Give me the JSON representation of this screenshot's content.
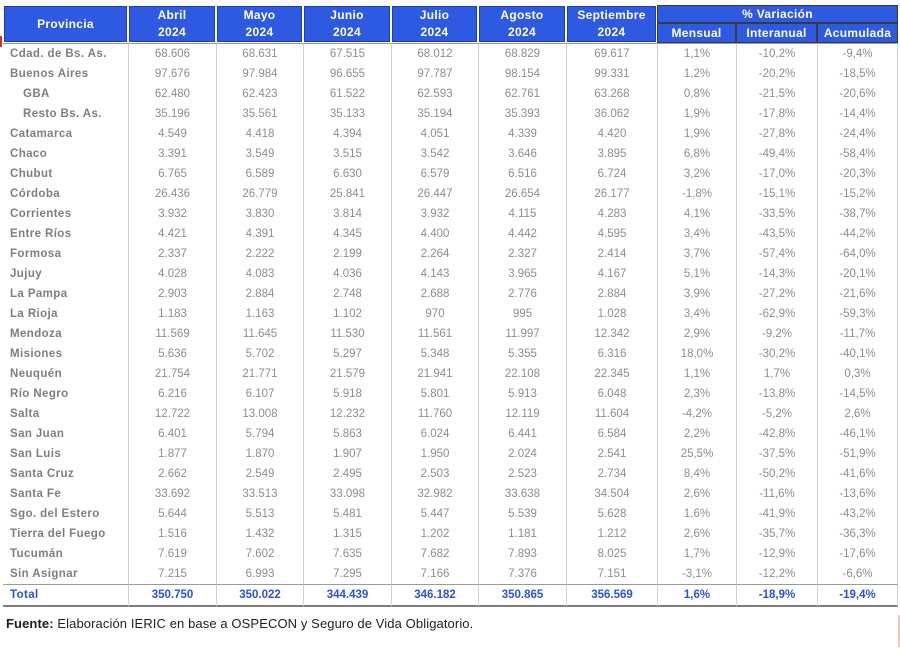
{
  "table": {
    "header": {
      "province_label": "Provincia",
      "months": [
        {
          "name": "Abril",
          "year": "2024"
        },
        {
          "name": "Mayo",
          "year": "2024"
        },
        {
          "name": "Junio",
          "year": "2024"
        },
        {
          "name": "Julio",
          "year": "2024"
        },
        {
          "name": "Agosto",
          "year": "2024"
        },
        {
          "name": "Septiembre",
          "year": "2024"
        }
      ],
      "variation_group": "% Variación",
      "variation_cols": [
        "Mensual",
        "Interanual",
        "Acumulada"
      ]
    },
    "rows": [
      {
        "province": "Cdad. de Bs. As.",
        "indent": false,
        "values": [
          "68.606",
          "68.631",
          "67.515",
          "68.012",
          "68.829",
          "69.617"
        ],
        "variations": [
          "1,1%",
          "-10,2%",
          "-9,4%"
        ]
      },
      {
        "province": "Buenos Aires",
        "indent": false,
        "values": [
          "97.676",
          "97.984",
          "96.655",
          "97.787",
          "98.154",
          "99.331"
        ],
        "variations": [
          "1,2%",
          "-20,2%",
          "-18,5%"
        ]
      },
      {
        "province": "GBA",
        "indent": true,
        "values": [
          "62.480",
          "62.423",
          "61.522",
          "62.593",
          "62.761",
          "63.268"
        ],
        "variations": [
          "0,8%",
          "-21,5%",
          "-20,6%"
        ]
      },
      {
        "province": "Resto Bs. As.",
        "indent": true,
        "values": [
          "35.196",
          "35.561",
          "35.133",
          "35.194",
          "35.393",
          "36.062"
        ],
        "variations": [
          "1,9%",
          "-17,8%",
          "-14,4%"
        ]
      },
      {
        "province": "Catamarca",
        "indent": false,
        "values": [
          "4.549",
          "4.418",
          "4.394",
          "4.051",
          "4.339",
          "4.420"
        ],
        "variations": [
          "1,9%",
          "-27,8%",
          "-24,4%"
        ]
      },
      {
        "province": "Chaco",
        "indent": false,
        "values": [
          "3.391",
          "3.549",
          "3.515",
          "3.542",
          "3.646",
          "3.895"
        ],
        "variations": [
          "6,8%",
          "-49,4%",
          "-58,4%"
        ]
      },
      {
        "province": "Chubut",
        "indent": false,
        "values": [
          "6.765",
          "6.589",
          "6.630",
          "6.579",
          "6.516",
          "6.724"
        ],
        "variations": [
          "3,2%",
          "-17,0%",
          "-20,3%"
        ]
      },
      {
        "province": "Córdoba",
        "indent": false,
        "values": [
          "26.436",
          "26.779",
          "25.841",
          "26.447",
          "26.654",
          "26.177"
        ],
        "variations": [
          "-1,8%",
          "-15,1%",
          "-15,2%"
        ]
      },
      {
        "province": "Corrientes",
        "indent": false,
        "values": [
          "3.932",
          "3.830",
          "3.814",
          "3.932",
          "4.115",
          "4.283"
        ],
        "variations": [
          "4,1%",
          "-33,5%",
          "-38,7%"
        ]
      },
      {
        "province": "Entre Ríos",
        "indent": false,
        "values": [
          "4.421",
          "4.391",
          "4.345",
          "4.400",
          "4.442",
          "4.595"
        ],
        "variations": [
          "3,4%",
          "-43,5%",
          "-44,2%"
        ]
      },
      {
        "province": "Formosa",
        "indent": false,
        "values": [
          "2.337",
          "2.222",
          "2.199",
          "2.264",
          "2.327",
          "2.414"
        ],
        "variations": [
          "3,7%",
          "-57,4%",
          "-64,0%"
        ]
      },
      {
        "province": "Jujuy",
        "indent": false,
        "values": [
          "4.028",
          "4.083",
          "4.036",
          "4.143",
          "3.965",
          "4.167"
        ],
        "variations": [
          "5,1%",
          "-14,3%",
          "-20,1%"
        ]
      },
      {
        "province": "La Pampa",
        "indent": false,
        "values": [
          "2.903",
          "2.884",
          "2.748",
          "2.688",
          "2.776",
          "2.884"
        ],
        "variations": [
          "3,9%",
          "-27,2%",
          "-21,6%"
        ]
      },
      {
        "province": "La Rioja",
        "indent": false,
        "values": [
          "1.183",
          "1.163",
          "1.102",
          "970",
          "995",
          "1.028"
        ],
        "variations": [
          "3,4%",
          "-62,9%",
          "-59,3%"
        ]
      },
      {
        "province": "Mendoza",
        "indent": false,
        "values": [
          "11.569",
          "11.645",
          "11.530",
          "11.561",
          "11.997",
          "12.342"
        ],
        "variations": [
          "2,9%",
          "-9,2%",
          "-11,7%"
        ]
      },
      {
        "province": "Misiones",
        "indent": false,
        "values": [
          "5.636",
          "5.702",
          "5.297",
          "5.348",
          "5.355",
          "6.316"
        ],
        "variations": [
          "18,0%",
          "-30,2%",
          "-40,1%"
        ]
      },
      {
        "province": "Neuquén",
        "indent": false,
        "values": [
          "21.754",
          "21.771",
          "21.579",
          "21.941",
          "22.108",
          "22.345"
        ],
        "variations": [
          "1,1%",
          "1,7%",
          "0,3%"
        ]
      },
      {
        "province": "Río Negro",
        "indent": false,
        "values": [
          "6.216",
          "6.107",
          "5.918",
          "5.801",
          "5.913",
          "6.048"
        ],
        "variations": [
          "2,3%",
          "-13,8%",
          "-14,5%"
        ]
      },
      {
        "province": "Salta",
        "indent": false,
        "values": [
          "12.722",
          "13.008",
          "12.232",
          "11.760",
          "12.119",
          "11.604"
        ],
        "variations": [
          "-4,2%",
          "-5,2%",
          "2,6%"
        ]
      },
      {
        "province": "San Juan",
        "indent": false,
        "values": [
          "6.401",
          "5.794",
          "5.863",
          "6.024",
          "6.441",
          "6.584"
        ],
        "variations": [
          "2,2%",
          "-42,8%",
          "-46,1%"
        ]
      },
      {
        "province": "San Luis",
        "indent": false,
        "values": [
          "1.877",
          "1.870",
          "1.907",
          "1.950",
          "2.024",
          "2.541"
        ],
        "variations": [
          "25,5%",
          "-37,5%",
          "-51,9%"
        ]
      },
      {
        "province": "Santa Cruz",
        "indent": false,
        "values": [
          "2.662",
          "2.549",
          "2.495",
          "2.503",
          "2.523",
          "2.734"
        ],
        "variations": [
          "8,4%",
          "-50,2%",
          "-41,6%"
        ]
      },
      {
        "province": "Santa Fe",
        "indent": false,
        "values": [
          "33.692",
          "33.513",
          "33.098",
          "32.982",
          "33.638",
          "34.504"
        ],
        "variations": [
          "2,6%",
          "-11,6%",
          "-13,6%"
        ]
      },
      {
        "province": "Sgo. del Estero",
        "indent": false,
        "values": [
          "5.644",
          "5.513",
          "5.481",
          "5.447",
          "5.539",
          "5.628"
        ],
        "variations": [
          "1,6%",
          "-41,9%",
          "-43,2%"
        ]
      },
      {
        "province": "Tierra del Fuego",
        "indent": false,
        "values": [
          "1.516",
          "1.432",
          "1.315",
          "1.202",
          "1.181",
          "1.212"
        ],
        "variations": [
          "2,6%",
          "-35,7%",
          "-36,3%"
        ]
      },
      {
        "province": "Tucumán",
        "indent": false,
        "values": [
          "7.619",
          "7.602",
          "7.635",
          "7.682",
          "7.893",
          "8.025"
        ],
        "variations": [
          "1,7%",
          "-12,9%",
          "-17,6%"
        ]
      },
      {
        "province": "Sin Asignar",
        "indent": false,
        "values": [
          "7.215",
          "6.993",
          "7.295",
          "7.166",
          "7.376",
          "7.151"
        ],
        "variations": [
          "-3,1%",
          "-12,2%",
          "-6,6%"
        ]
      }
    ],
    "total": {
      "province": "Total",
      "indent": false,
      "values": [
        "350.750",
        "350.022",
        "344.439",
        "346.182",
        "350.865",
        "356.569"
      ],
      "variations": [
        "1,6%",
        "-18,9%",
        "-19,4%"
      ]
    }
  },
  "footer": {
    "source_label": "Fuente:",
    "source_text": " Elaboración IERIC en base a OSPECON y Seguro de Vida Obligatorio."
  },
  "colors": {
    "header_bg": "#2e59e1",
    "header_border_dark": "#1c3fb0",
    "header_text": "#ffffff",
    "body_text": "#8d8d8d",
    "province_text": "#7e7e7e",
    "total_text": "#2b52d4",
    "grid": "#d2d2d2"
  }
}
